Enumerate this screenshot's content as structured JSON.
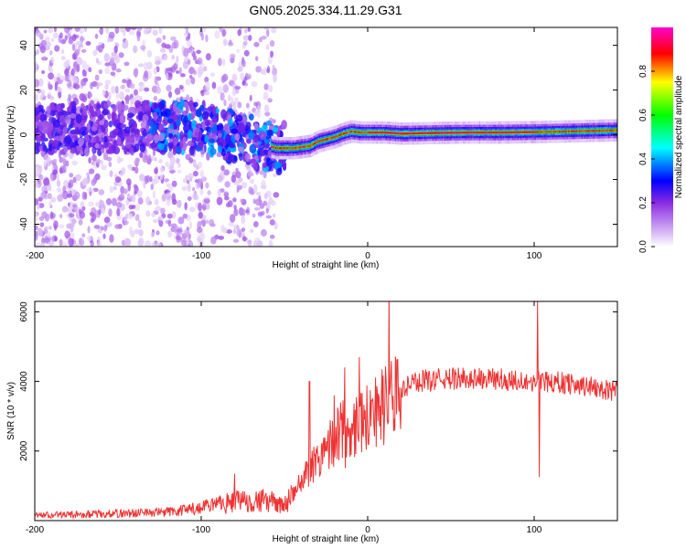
{
  "title": "GN05.2025.334.11.29.G31",
  "chart_data": [
    {
      "type": "heatmap",
      "title": "GN05.2025.334.11.29.G31",
      "xlabel": "Height of straight line (km)",
      "ylabel": "Frequency (Hz)",
      "xlim": [
        -200,
        150
      ],
      "ylim": [
        -50,
        48
      ],
      "xticks": [
        -200,
        -100,
        0,
        100
      ],
      "yticks": [
        -40,
        -20,
        0,
        20,
        40
      ],
      "colorbar": {
        "label": "Normalized spectral amplitude",
        "range": [
          0,
          1
        ],
        "ticks": [
          "0.0",
          "0.2",
          "0.4",
          "0.6",
          "0.8"
        ],
        "colors": [
          "#ffffff",
          "#e0c8f8",
          "#8a2be2",
          "#0000ff",
          "#00ffff",
          "#00ff00",
          "#ffff00",
          "#ff0000",
          "#ff00cc"
        ]
      },
      "ridge": {
        "x": [
          -200,
          -150,
          -120,
          -100,
          -90,
          -80,
          -70,
          -60,
          -55,
          -50,
          -45,
          -40,
          -35,
          -30,
          -25,
          -20,
          -15,
          -10,
          -5,
          0,
          10,
          20,
          40,
          60,
          80,
          100,
          120,
          150
        ],
        "y": [
          2,
          3,
          4,
          3,
          1,
          -1,
          -3,
          -5,
          -6,
          -6,
          -6,
          -5.5,
          -5,
          -3,
          -2,
          -1,
          0.5,
          1.5,
          1,
          1,
          1,
          0.5,
          0.8,
          1,
          1,
          1.2,
          1.5,
          2
        ]
      }
    },
    {
      "type": "line",
      "xlabel": "Height of straight line (km)",
      "ylabel": "SNR (10 * v/v)",
      "xlim": [
        -200,
        150
      ],
      "ylim": [
        0,
        6300
      ],
      "xticks": [
        -200,
        -100,
        0,
        100
      ],
      "yticks": [
        2000,
        4000,
        6000
      ],
      "series": [
        {
          "name": "SNR",
          "color": "#ee3333",
          "trend": {
            "x": [
              -200,
              -150,
              -120,
              -100,
              -80,
              -70,
              -60,
              -50,
              -45,
              -40,
              -35,
              -30,
              -25,
              -20,
              -15,
              -10,
              -5,
              0,
              5,
              10,
              15,
              20,
              25,
              30,
              40,
              60,
              80,
              100,
              110,
              120,
              140,
              150
            ],
            "y": [
              150,
              200,
              250,
              350,
              550,
              600,
              550,
              450,
              700,
              1100,
              1500,
              1800,
              2100,
              2400,
              2600,
              2700,
              2900,
              3000,
              3200,
              3300,
              3500,
              3700,
              3900,
              4000,
              4050,
              4100,
              4050,
              4000,
              4000,
              3950,
              3800,
              3700
            ]
          },
          "spikes": [
            {
              "x": -80,
              "y": 1350
            },
            {
              "x": -35,
              "y": 4000
            },
            {
              "x": -20,
              "y": 3600
            },
            {
              "x": -5,
              "y": 4700
            },
            {
              "x": 102,
              "y": 6300
            },
            {
              "x": 103,
              "y": 1250
            }
          ]
        }
      ]
    }
  ]
}
